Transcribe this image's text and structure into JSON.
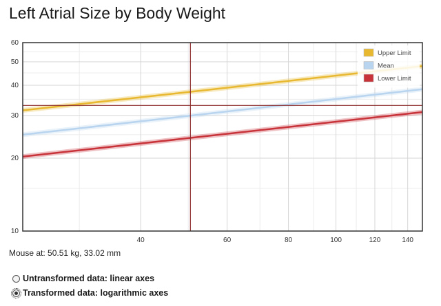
{
  "title": "Left Atrial Size by Body Weight",
  "mouse_readout": "Mouse at: 50.51 kg, 33.02 mm",
  "options": [
    {
      "label": "Untransformed data: linear axes",
      "checked": false
    },
    {
      "label": "Transformed data: logarithmic axes",
      "checked": true
    }
  ],
  "chart_data": {
    "type": "line",
    "title": "Left Atrial Size by Body Weight",
    "xlabel": "",
    "ylabel": "",
    "x_scale": "log",
    "y_scale": "log",
    "xlim": [
      23,
      150
    ],
    "ylim": [
      10,
      60
    ],
    "x_ticks": [
      40,
      60,
      80,
      100,
      120,
      140
    ],
    "y_ticks": [
      10,
      20,
      30,
      40,
      50,
      60
    ],
    "grid": true,
    "legend_position": "top-right",
    "series": [
      {
        "name": "Upper Limit",
        "color": "#e8b830",
        "x": [
          23,
          150
        ],
        "y": [
          31.5,
          48
        ]
      },
      {
        "name": "Mean",
        "color": "#b8d4ee",
        "x": [
          23,
          150
        ],
        "y": [
          25,
          38.5
        ]
      },
      {
        "name": "Lower Limit",
        "color": "#c8333a",
        "x": [
          23,
          150
        ],
        "y": [
          20.3,
          31
        ]
      }
    ],
    "crosshair": {
      "x": 50.51,
      "y": 33.02,
      "color": "#8b2a2a"
    }
  }
}
